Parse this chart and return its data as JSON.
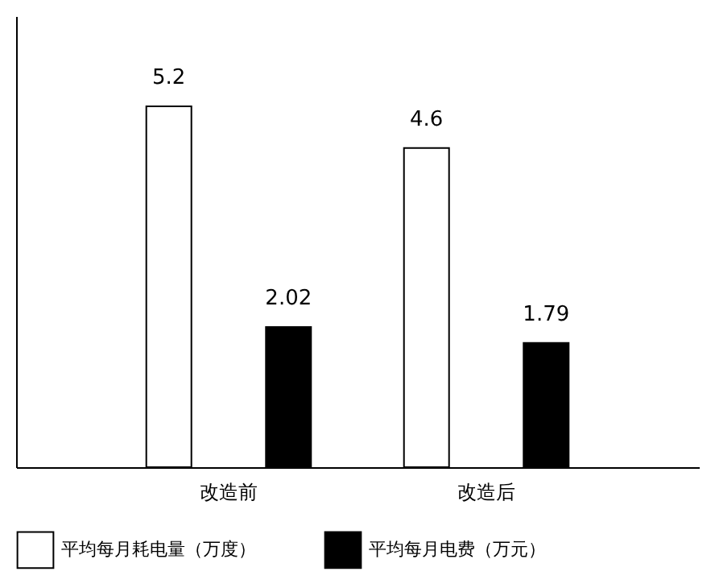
{
  "chart_data": {
    "type": "bar",
    "categories": [
      "改造前",
      "改造后"
    ],
    "series": [
      {
        "name": "平均每月耗电量（万度）",
        "color": "#ffffff",
        "values": [
          5.2,
          4.6
        ]
      },
      {
        "name": "平均每月电费（万元）",
        "color": "#000000",
        "values": [
          2.02,
          1.79
        ]
      }
    ],
    "data_labels": true,
    "tick_labels": "x",
    "grid": false,
    "legend": "bottom"
  }
}
